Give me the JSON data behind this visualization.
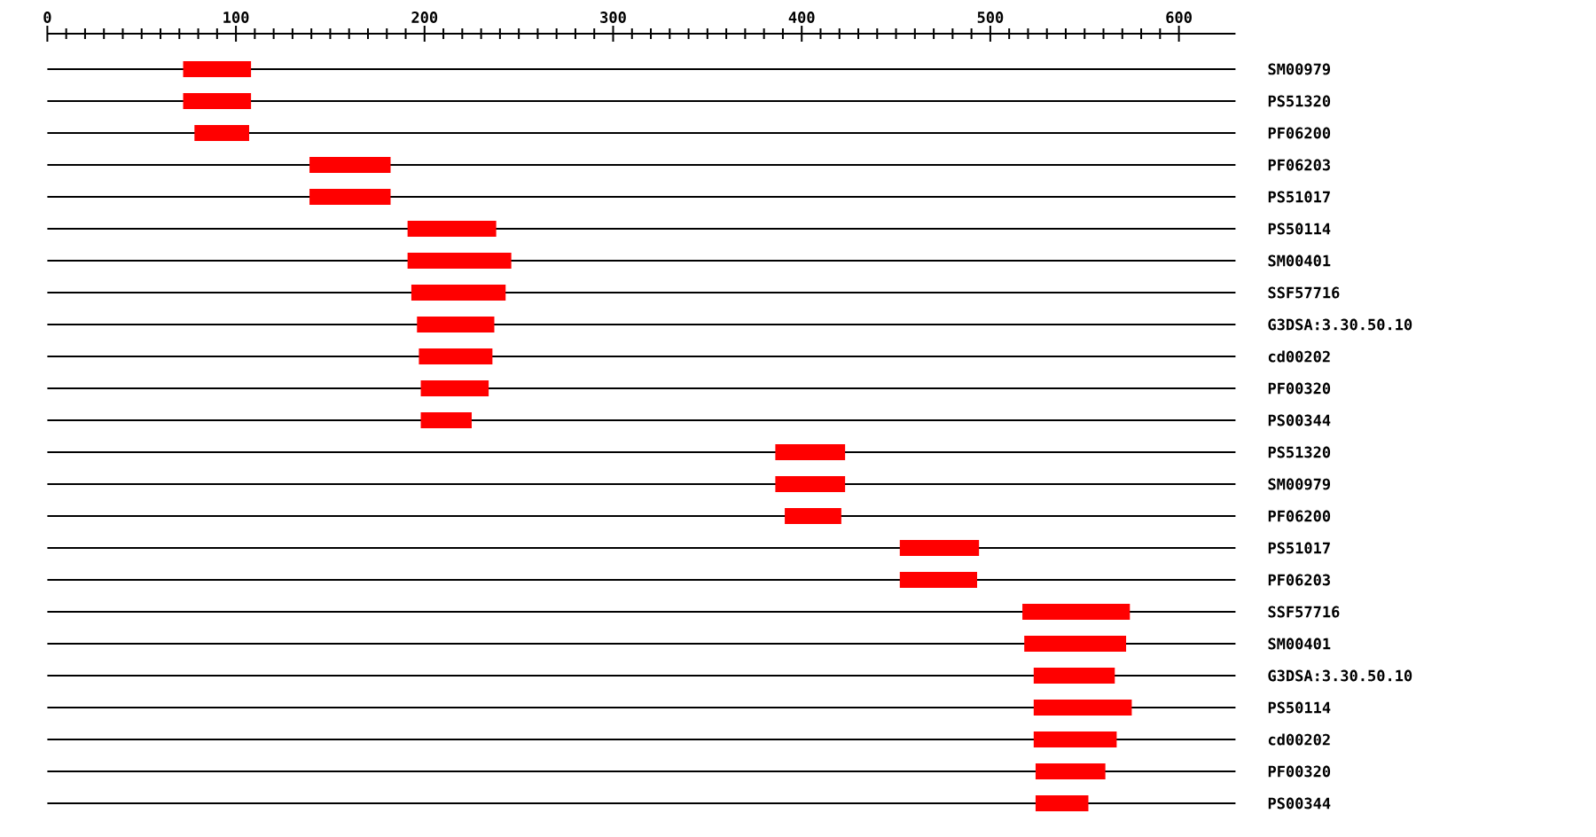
{
  "chart_data": {
    "type": "bar",
    "orientation": "horizontal",
    "categories": [
      "SM00979",
      "PS51320",
      "PF06200",
      "PF06203",
      "PS51017",
      "PS50114",
      "SM00401",
      "SSF57716",
      "G3DSA:3.30.50.10",
      "cd00202",
      "PF00320",
      "PS00344",
      "PS51320",
      "SM00979",
      "PF06200",
      "PS51017",
      "PF06203",
      "SSF57716",
      "SM00401",
      "G3DSA:3.30.50.10",
      "PS50114",
      "cd00202",
      "PF00320",
      "PS00344"
    ],
    "base": [
      72,
      72,
      78,
      139,
      139,
      191,
      191,
      193,
      196,
      197,
      198,
      198,
      386,
      386,
      391,
      452,
      452,
      517,
      518,
      523,
      523,
      523,
      524,
      524
    ],
    "values": [
      36,
      36,
      29,
      43,
      43,
      47,
      55,
      50,
      41,
      39,
      36,
      27,
      37,
      37,
      30,
      42,
      41,
      57,
      54,
      43,
      52,
      44,
      37,
      28
    ],
    "color": "#ff0000",
    "xlim": [
      0,
      630
    ],
    "xticks": [
      0,
      100,
      200,
      300,
      400,
      500,
      600
    ],
    "grid": "y"
  }
}
